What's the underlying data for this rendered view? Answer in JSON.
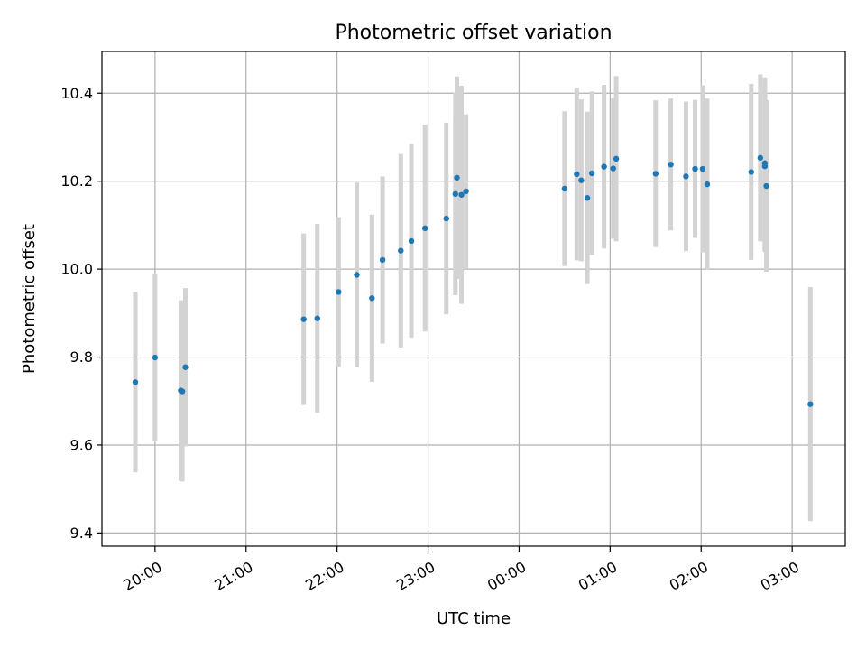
{
  "chart_data": {
    "type": "scatter",
    "title": "Photometric offset variation",
    "xlabel": "UTC time",
    "ylabel": "Photometric offset",
    "xlim": [
      "19:25",
      "03:35"
    ],
    "ylim": [
      9.37,
      10.495
    ],
    "x_ticks": [
      "20:00",
      "21:00",
      "22:00",
      "23:00",
      "00:00",
      "01:00",
      "02:00",
      "03:00"
    ],
    "y_ticks": [
      "9.4",
      "9.6",
      "9.8",
      "10.0",
      "10.2",
      "10.4"
    ],
    "grid": true,
    "colors": {
      "points": "#1f77b4",
      "error_bars": "#d3d3d3"
    },
    "points": [
      {
        "x": "19:47",
        "y": 9.743,
        "yerr": 0.205
      },
      {
        "x": "20:00",
        "y": 9.799,
        "yerr": 0.19
      },
      {
        "x": "20:17",
        "y": 9.724,
        "yerr": 0.205
      },
      {
        "x": "20:18",
        "y": 9.722,
        "yerr": 0.205
      },
      {
        "x": "20:20",
        "y": 9.777,
        "yerr": 0.18
      },
      {
        "x": "21:38",
        "y": 9.886,
        "yerr": 0.195
      },
      {
        "x": "21:47",
        "y": 9.888,
        "yerr": 0.215
      },
      {
        "x": "22:01",
        "y": 9.948,
        "yerr": 0.17
      },
      {
        "x": "22:13",
        "y": 9.987,
        "yerr": 0.21
      },
      {
        "x": "22:23",
        "y": 9.934,
        "yerr": 0.19
      },
      {
        "x": "22:30",
        "y": 10.021,
        "yerr": 0.19
      },
      {
        "x": "22:42",
        "y": 10.042,
        "yerr": 0.22
      },
      {
        "x": "22:49",
        "y": 10.064,
        "yerr": 0.22
      },
      {
        "x": "22:58",
        "y": 10.093,
        "yerr": 0.235
      },
      {
        "x": "23:12",
        "y": 10.115,
        "yerr": 0.218
      },
      {
        "x": "23:18",
        "y": 10.171,
        "yerr": 0.23
      },
      {
        "x": "23:19",
        "y": 10.208,
        "yerr": 0.23
      },
      {
        "x": "23:22",
        "y": 10.169,
        "yerr": 0.248
      },
      {
        "x": "23:25",
        "y": 10.177,
        "yerr": 0.175
      },
      {
        "x": "00:30",
        "y": 10.183,
        "yerr": 0.176
      },
      {
        "x": "00:38",
        "y": 10.216,
        "yerr": 0.196
      },
      {
        "x": "00:41",
        "y": 10.202,
        "yerr": 0.184
      },
      {
        "x": "00:45",
        "y": 10.162,
        "yerr": 0.196
      },
      {
        "x": "00:48",
        "y": 10.218,
        "yerr": 0.186
      },
      {
        "x": "00:56",
        "y": 10.233,
        "yerr": 0.186
      },
      {
        "x": "01:02",
        "y": 10.229,
        "yerr": 0.16
      },
      {
        "x": "01:04",
        "y": 10.251,
        "yerr": 0.188
      },
      {
        "x": "01:30",
        "y": 10.217,
        "yerr": 0.167
      },
      {
        "x": "01:40",
        "y": 10.238,
        "yerr": 0.15
      },
      {
        "x": "01:50",
        "y": 10.211,
        "yerr": 0.17
      },
      {
        "x": "01:56",
        "y": 10.228,
        "yerr": 0.157
      },
      {
        "x": "02:01",
        "y": 10.228,
        "yerr": 0.19
      },
      {
        "x": "02:04",
        "y": 10.193,
        "yerr": 0.195
      },
      {
        "x": "02:33",
        "y": 10.221,
        "yerr": 0.2
      },
      {
        "x": "02:39",
        "y": 10.253,
        "yerr": 0.19
      },
      {
        "x": "02:42",
        "y": 10.241,
        "yerr": 0.195
      },
      {
        "x": "02:42",
        "y": 10.234,
        "yerr": 0.195
      },
      {
        "x": "02:43",
        "y": 10.189,
        "yerr": 0.195
      },
      {
        "x": "03:12",
        "y": 9.693,
        "yerr": 0.266
      }
    ]
  }
}
